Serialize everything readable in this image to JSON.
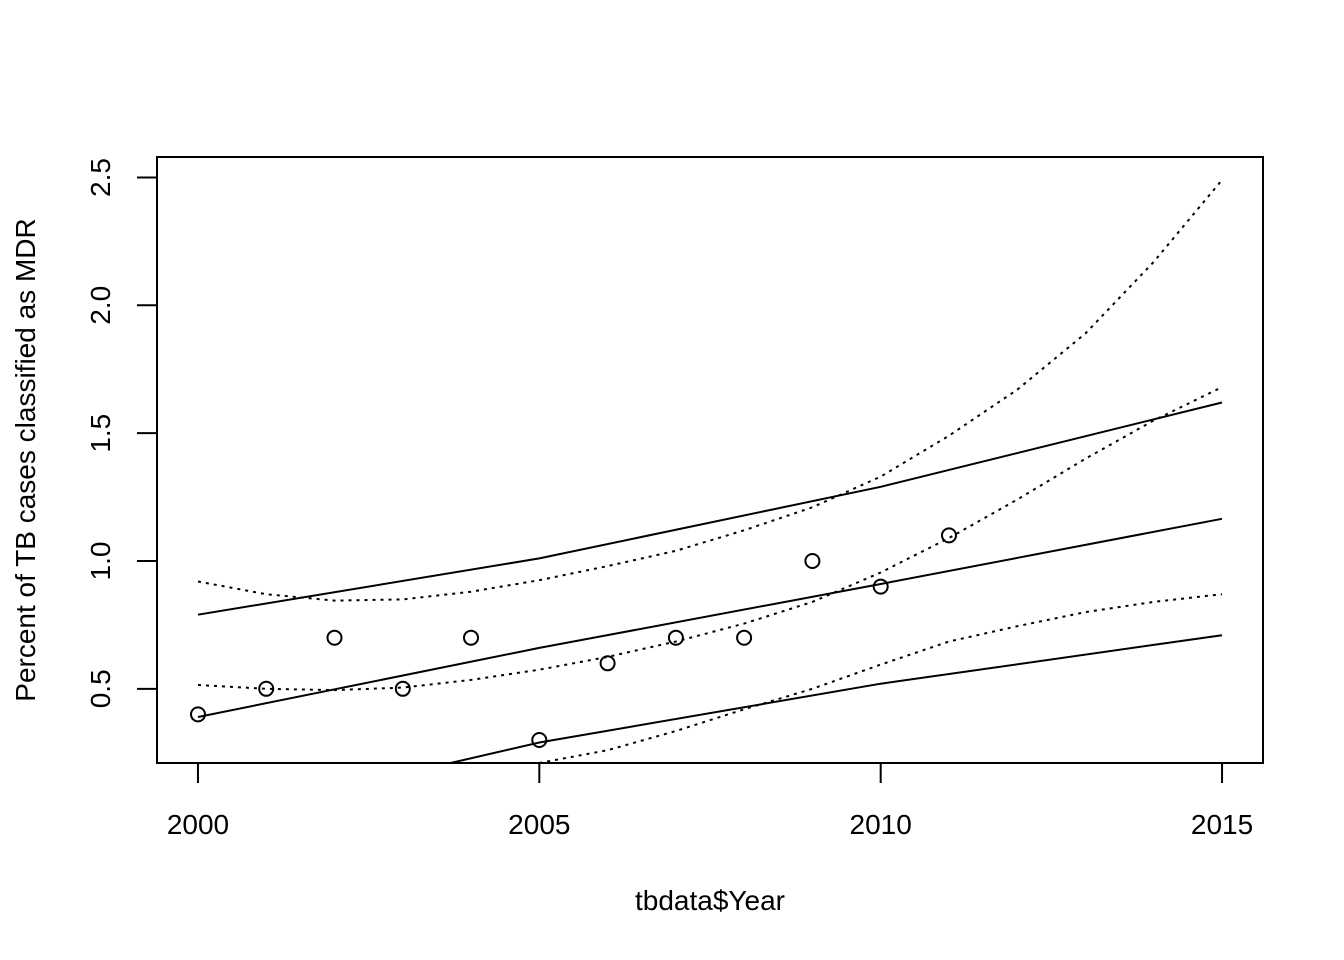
{
  "chart_data": {
    "type": "scatter",
    "title": "",
    "xlabel": "tbdata$Year",
    "ylabel": "Percent of TB cases classified as MDR",
    "xlim": [
      1999.4,
      2015.6
    ],
    "ylim": [
      0.21,
      2.58
    ],
    "x_ticks": [
      2000,
      2005,
      2010,
      2015
    ],
    "x_tick_labels": [
      "2000",
      "2005",
      "2010",
      "2015"
    ],
    "y_ticks": [
      0.5,
      1.0,
      1.5,
      2.0,
      2.5
    ],
    "y_tick_labels": [
      "0.5",
      "1.0",
      "1.5",
      "2.0",
      "2.5"
    ],
    "grid": false,
    "points": {
      "x": [
        2000,
        2001,
        2002,
        2003,
        2004,
        2005,
        2006,
        2007,
        2008,
        2009,
        2010,
        2011
      ],
      "y": [
        0.4,
        0.5,
        0.7,
        0.5,
        0.7,
        0.3,
        0.6,
        0.7,
        0.7,
        1.0,
        0.9,
        1.1
      ]
    },
    "series": [
      {
        "style": "solid",
        "x": [
          2000,
          2005,
          2010,
          2015
        ],
        "y": [
          0.39,
          0.66,
          0.91,
          1.165
        ]
      },
      {
        "style": "solid",
        "x": [
          2000,
          2005,
          2010,
          2015
        ],
        "y": [
          0.79,
          1.01,
          1.29,
          1.62
        ]
      },
      {
        "style": "solid",
        "x": [
          2003.7,
          2005,
          2010,
          2015
        ],
        "y": [
          0.21,
          0.29,
          0.52,
          0.71
        ]
      },
      {
        "style": "dotted",
        "x": [
          2000,
          2001,
          2002,
          2003,
          2004,
          2005,
          2006,
          2007,
          2008,
          2009,
          2010,
          2011,
          2012,
          2013,
          2014,
          2015
        ],
        "y": [
          0.515,
          0.5,
          0.495,
          0.505,
          0.535,
          0.575,
          0.625,
          0.685,
          0.755,
          0.84,
          0.955,
          1.09,
          1.24,
          1.4,
          1.55,
          1.68
        ]
      },
      {
        "style": "dotted",
        "x": [
          2000,
          2001,
          2002,
          2003,
          2004,
          2005,
          2006,
          2007,
          2008,
          2009,
          2010,
          2011,
          2012,
          2013,
          2014,
          2015
        ],
        "y": [
          0.92,
          0.87,
          0.845,
          0.85,
          0.88,
          0.925,
          0.98,
          1.04,
          1.12,
          1.21,
          1.33,
          1.49,
          1.67,
          1.89,
          2.17,
          2.49
        ]
      },
      {
        "style": "dotted",
        "x": [
          2005,
          2006,
          2007,
          2008,
          2009,
          2010,
          2011,
          2012,
          2013,
          2014,
          2015
        ],
        "y": [
          0.21,
          0.26,
          0.335,
          0.42,
          0.5,
          0.595,
          0.685,
          0.745,
          0.8,
          0.84,
          0.87
        ]
      }
    ]
  }
}
